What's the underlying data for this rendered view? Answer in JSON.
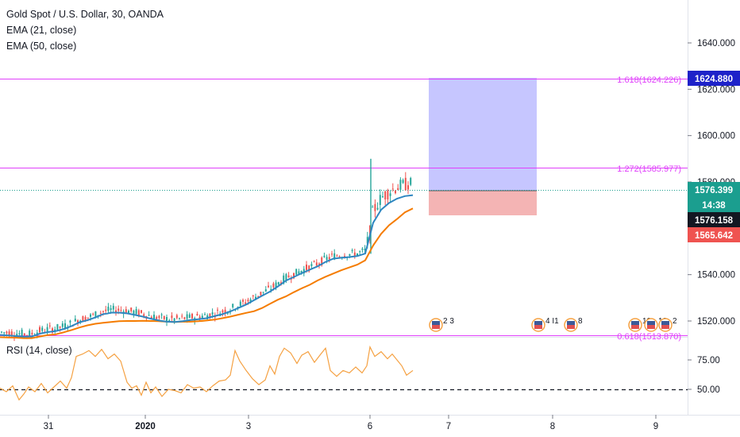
{
  "legend": {
    "symbol": "Gold Spot / U.S. Dollar, 30, OANDA",
    "ema21": "EMA (21, close)",
    "ema50": "EMA (50, close)",
    "rsi": "RSI (14, close)"
  },
  "colors": {
    "ema21": "#2e86c1",
    "ema50": "#f57c00",
    "rsi": "#f5a142",
    "fib": "#e040fb",
    "up": "#26a69a",
    "down": "#ef5350",
    "target_zone": "#b3b3ff",
    "stop_zone": "#f4a6a6",
    "tag_blue": "#1e22c9",
    "tag_teal": "#1b9e8f",
    "tag_red": "#ef5350",
    "tag_dark": "#131722"
  },
  "price_tags": {
    "fib_top": "1624.880",
    "current": "1576.399",
    "countdown": "14:38",
    "entry": "1576.158",
    "stop": "1565.642"
  },
  "fib_labels": {
    "upper": "1.618(1624.226)",
    "middle": "1.272(1585.977)",
    "lower": "0.618(1513.870)"
  },
  "events": [
    "2",
    "3",
    "4",
    "I1",
    "8",
    "10",
    "12",
    "2"
  ],
  "chart_data": [
    {
      "type": "line",
      "title": "Gold Spot / U.S. Dollar, 30, OANDA",
      "xlabel": "",
      "ylabel": "",
      "x_ticks": [
        "31",
        "2020",
        "3",
        "6",
        "7",
        "8",
        "9"
      ],
      "y_ticks": [
        1520,
        1540,
        1560,
        1580,
        1600,
        1620,
        1640
      ],
      "ylim": [
        1512,
        1650
      ],
      "grid": false,
      "series": [
        {
          "name": "EMA (21, close)",
          "x": [
            0,
            10,
            20,
            30,
            40,
            50,
            60,
            70,
            80,
            90,
            100,
            110,
            120,
            130,
            135,
            140,
            150,
            160,
            170,
            180,
            190,
            200,
            210,
            220,
            230,
            240,
            250,
            260,
            270,
            280,
            290,
            300,
            310,
            320,
            330,
            340,
            350,
            360,
            370,
            380,
            390,
            400,
            410,
            420,
            430,
            440,
            450,
            460,
            470,
            480,
            490,
            500,
            510,
            520
          ],
          "values": [
            1514.0,
            1513.8,
            1513.5,
            1513.2,
            1513.3,
            1514.5,
            1515.2,
            1515.6,
            1516.5,
            1517.8,
            1519.4,
            1520.3,
            1521.5,
            1523.0,
            1523.2,
            1523.6,
            1523.6,
            1523.3,
            1522.6,
            1521.9,
            1521.0,
            1520.2,
            1519.7,
            1519.6,
            1519.9,
            1520.4,
            1520.8,
            1521.2,
            1522.1,
            1522.9,
            1524.1,
            1525.6,
            1527.1,
            1529.0,
            1530.9,
            1532.7,
            1534.9,
            1537.4,
            1539.0,
            1540.6,
            1542.1,
            1543.6,
            1545.5,
            1546.9,
            1547.3,
            1547.6,
            1548.0,
            1549.1,
            1562.4,
            1568.0,
            1570.9,
            1572.8,
            1573.9,
            1574.3
          ]
        },
        {
          "name": "EMA (50, close)",
          "x": [
            0,
            10,
            20,
            30,
            40,
            50,
            60,
            70,
            80,
            90,
            100,
            110,
            120,
            130,
            140,
            150,
            160,
            170,
            180,
            190,
            200,
            210,
            220,
            230,
            240,
            250,
            260,
            270,
            280,
            290,
            300,
            310,
            320,
            330,
            340,
            350,
            360,
            370,
            380,
            390,
            400,
            410,
            420,
            430,
            440,
            450,
            460,
            470,
            480,
            490,
            500,
            510,
            520
          ],
          "values": [
            1513.0,
            1512.9,
            1512.8,
            1512.6,
            1512.6,
            1513.3,
            1513.9,
            1514.2,
            1515.1,
            1516.1,
            1517.2,
            1518.1,
            1518.8,
            1519.2,
            1519.6,
            1519.9,
            1520.0,
            1520.0,
            1520.1,
            1520.0,
            1519.9,
            1519.7,
            1519.6,
            1519.7,
            1519.7,
            1519.9,
            1520.2,
            1520.6,
            1521.2,
            1521.9,
            1522.7,
            1523.5,
            1524.2,
            1525.6,
            1527.4,
            1529.2,
            1530.6,
            1532.4,
            1534.1,
            1535.6,
            1537.5,
            1539.1,
            1540.5,
            1541.9,
            1543.1,
            1544.3,
            1546.2,
            1552.6,
            1557.6,
            1561.3,
            1564.0,
            1566.9,
            1568.6
          ]
        }
      ]
    },
    {
      "type": "line",
      "title": "RSI (14, close)",
      "xlabel": "",
      "ylabel": "",
      "y_ticks": [
        50.0,
        75.0
      ],
      "ylim": [
        35,
        95
      ],
      "grid": false,
      "series": [
        {
          "name": "RSI (14, close)",
          "x": [
            0,
            8,
            16,
            24,
            30,
            36,
            44,
            52,
            60,
            68,
            76,
            84,
            90,
            96,
            104,
            112,
            120,
            128,
            136,
            144,
            152,
            160,
            166,
            172,
            178,
            184,
            190,
            196,
            204,
            212,
            220,
            228,
            236,
            244,
            252,
            260,
            268,
            276,
            284,
            290,
            296,
            302,
            310,
            318,
            326,
            334,
            340,
            346,
            352,
            358,
            366,
            374,
            380,
            388,
            396,
            404,
            410,
            416,
            424,
            432,
            440,
            448,
            456,
            462,
            466,
            472,
            480,
            488,
            494,
            500,
            506,
            512,
            520
          ],
          "values": [
            51,
            48,
            53,
            41,
            46,
            52,
            48,
            55,
            47,
            52,
            57,
            51,
            60,
            78,
            80,
            83,
            78,
            84,
            76,
            80,
            74,
            56,
            51,
            53,
            45,
            56,
            47,
            52,
            44,
            50,
            49,
            47,
            54,
            51,
            52,
            48,
            53,
            57,
            58,
            62,
            83,
            74,
            66,
            59,
            54,
            58,
            70,
            63,
            78,
            85,
            81,
            72,
            79,
            82,
            73,
            80,
            85,
            66,
            61,
            66,
            64,
            69,
            64,
            70,
            86,
            78,
            82,
            76,
            80,
            75,
            70,
            62,
            66
          ]
        }
      ]
    }
  ]
}
